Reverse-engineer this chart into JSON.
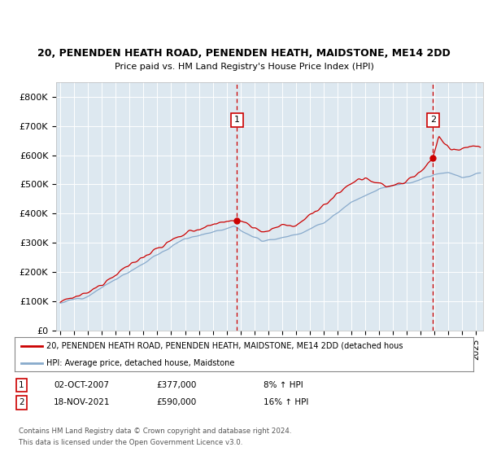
{
  "title1": "20, PENENDEN HEATH ROAD, PENENDEN HEATH, MAIDSTONE, ME14 2DD",
  "title2": "Price paid vs. HM Land Registry's House Price Index (HPI)",
  "ylabel_ticks": [
    "£0",
    "£100K",
    "£200K",
    "£300K",
    "£400K",
    "£500K",
    "£600K",
    "£700K",
    "£800K"
  ],
  "ytick_values": [
    0,
    100000,
    200000,
    300000,
    400000,
    500000,
    600000,
    700000,
    800000
  ],
  "ylim": [
    0,
    850000
  ],
  "xlim_start": 1994.7,
  "xlim_end": 2025.5,
  "sale1_x": 2007.75,
  "sale1_y": 377000,
  "sale1_label": "1",
  "sale1_date": "02-OCT-2007",
  "sale1_price": "£377,000",
  "sale1_hpi": "8% ↑ HPI",
  "sale2_x": 2021.88,
  "sale2_y": 590000,
  "sale2_label": "2",
  "sale2_date": "18-NOV-2021",
  "sale2_price": "£590,000",
  "sale2_hpi": "16% ↑ HPI",
  "red_color": "#cc0000",
  "blue_color": "#88aacc",
  "plot_bg": "#dde8f0",
  "legend_line1": "20, PENENDEN HEATH ROAD, PENENDEN HEATH, MAIDSTONE, ME14 2DD (detached hous",
  "legend_line2": "HPI: Average price, detached house, Maidstone",
  "footer1": "Contains HM Land Registry data © Crown copyright and database right 2024.",
  "footer2": "This data is licensed under the Open Government Licence v3.0.",
  "xtick_years": [
    1995,
    1996,
    1997,
    1998,
    1999,
    2000,
    2001,
    2002,
    2003,
    2004,
    2005,
    2006,
    2007,
    2008,
    2009,
    2010,
    2011,
    2012,
    2013,
    2014,
    2015,
    2016,
    2017,
    2018,
    2019,
    2020,
    2021,
    2022,
    2023,
    2024,
    2025
  ]
}
